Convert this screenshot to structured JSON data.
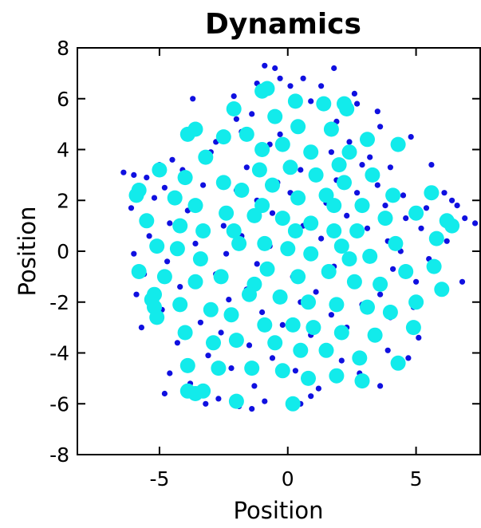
{
  "chart_data": {
    "type": "scatter",
    "title": "Dynamics",
    "xlabel": "Position",
    "ylabel": "Position",
    "xlim": [
      -8.2,
      7.5
    ],
    "ylim": [
      -8,
      8
    ],
    "xticks": [
      -5,
      0,
      5
    ],
    "yticks": [
      -8,
      -6,
      -4,
      -2,
      0,
      2,
      4,
      6,
      8
    ],
    "grid": false,
    "legend": false,
    "series": [
      {
        "color": "#1010e0",
        "marker": "small-dot",
        "points": [
          [
            -0.9,
            7.3
          ],
          [
            -0.5,
            7.2
          ],
          [
            1.8,
            7.2
          ],
          [
            -0.3,
            6.8
          ],
          [
            0.6,
            6.8
          ],
          [
            0.1,
            6.5
          ],
          [
            -1.2,
            6.6
          ],
          [
            1.3,
            6.5
          ],
          [
            2.6,
            6.2
          ],
          [
            -2.1,
            6.1
          ],
          [
            -3.7,
            6.0
          ],
          [
            0.9,
            5.9
          ],
          [
            2.7,
            5.8
          ],
          [
            3.5,
            5.5
          ],
          [
            -1.4,
            5.4
          ],
          [
            -2.0,
            5.2
          ],
          [
            1.9,
            5.1
          ],
          [
            3.6,
            4.9
          ],
          [
            -1.8,
            4.7
          ],
          [
            -0.3,
            4.6
          ],
          [
            2.4,
            4.3
          ],
          [
            4.8,
            4.5
          ],
          [
            -2.8,
            4.3
          ],
          [
            -0.7,
            4.2
          ],
          [
            1.7,
            3.9
          ],
          [
            -4.5,
            3.6
          ],
          [
            -3.0,
            3.9
          ],
          [
            3.2,
            3.7
          ],
          [
            -6.4,
            3.1
          ],
          [
            -6.0,
            3.0
          ],
          [
            -5.0,
            3.4
          ],
          [
            -4.1,
            3.2
          ],
          [
            -1.6,
            3.3
          ],
          [
            0.5,
            3.2
          ],
          [
            2.9,
            3.4
          ],
          [
            4.0,
            3.3
          ],
          [
            5.6,
            3.4
          ],
          [
            -5.5,
            2.9
          ],
          [
            -3.3,
            2.6
          ],
          [
            -0.4,
            2.7
          ],
          [
            1.9,
            2.8
          ],
          [
            3.5,
            2.6
          ],
          [
            -4.8,
            2.5
          ],
          [
            -2.0,
            2.4
          ],
          [
            0.1,
            2.3
          ],
          [
            2.7,
            2.3
          ],
          [
            4.5,
            2.2
          ],
          [
            6.1,
            2.3
          ],
          [
            6.4,
            2.0
          ],
          [
            -5.2,
            2.1
          ],
          [
            -1.2,
            2.0
          ],
          [
            1.5,
            1.9
          ],
          [
            3.8,
            1.8
          ],
          [
            5.4,
            1.7
          ],
          [
            6.6,
            1.8
          ],
          [
            -6.1,
            1.7
          ],
          [
            -3.9,
            1.6
          ],
          [
            -0.6,
            1.5
          ],
          [
            2.3,
            1.4
          ],
          [
            4.6,
            1.3
          ],
          [
            6.9,
            1.3
          ],
          [
            7.3,
            1.1
          ],
          [
            -4.6,
            1.1
          ],
          [
            -2.5,
            1.0
          ],
          [
            0.6,
            1.0
          ],
          [
            3.1,
            0.9
          ],
          [
            5.2,
            0.9
          ],
          [
            -5.4,
            0.6
          ],
          [
            -1.8,
            0.6
          ],
          [
            1.3,
            0.5
          ],
          [
            3.9,
            0.4
          ],
          [
            6.2,
            0.4
          ],
          [
            -3.6,
            0.3
          ],
          [
            -0.7,
            0.2
          ],
          [
            2.0,
            0.1
          ],
          [
            4.4,
            0.0
          ],
          [
            -6.0,
            -0.1
          ],
          [
            -2.4,
            -0.1
          ],
          [
            0.8,
            -0.2
          ],
          [
            3.3,
            -0.3
          ],
          [
            5.5,
            -0.3
          ],
          [
            -4.7,
            -0.4
          ],
          [
            -1.2,
            -0.5
          ],
          [
            1.8,
            -0.6
          ],
          [
            4.1,
            -0.7
          ],
          [
            -5.6,
            -0.9
          ],
          [
            -2.8,
            -0.9
          ],
          [
            0.2,
            -1.0
          ],
          [
            2.7,
            -1.1
          ],
          [
            5.0,
            -1.2
          ],
          [
            6.8,
            -1.2
          ],
          [
            -4.2,
            -1.4
          ],
          [
            -1.6,
            -1.5
          ],
          [
            1.1,
            -1.6
          ],
          [
            3.6,
            -1.7
          ],
          [
            -5.9,
            -1.7
          ],
          [
            -2.3,
            -1.9
          ],
          [
            0.5,
            -2.0
          ],
          [
            2.9,
            -2.1
          ],
          [
            4.9,
            -2.2
          ],
          [
            -4.9,
            -2.3
          ],
          [
            -1.0,
            -2.4
          ],
          [
            1.7,
            -2.5
          ],
          [
            4.0,
            -2.6
          ],
          [
            -3.4,
            -2.8
          ],
          [
            -0.2,
            -2.9
          ],
          [
            2.3,
            -3.0
          ],
          [
            -5.7,
            -3.0
          ],
          [
            -2.6,
            -3.2
          ],
          [
            0.9,
            -3.3
          ],
          [
            3.4,
            -3.3
          ],
          [
            5.1,
            -3.4
          ],
          [
            -4.3,
            -3.6
          ],
          [
            -1.5,
            -3.7
          ],
          [
            1.5,
            -3.8
          ],
          [
            3.9,
            -3.9
          ],
          [
            -3.1,
            -4.1
          ],
          [
            -0.6,
            -4.2
          ],
          [
            2.1,
            -4.3
          ],
          [
            4.7,
            -4.2
          ],
          [
            -4.6,
            -4.8
          ],
          [
            -2.2,
            -4.6
          ],
          [
            0.3,
            -4.7
          ],
          [
            2.8,
            -4.8
          ],
          [
            -3.8,
            -5.2
          ],
          [
            -1.3,
            -5.3
          ],
          [
            1.2,
            -5.4
          ],
          [
            3.6,
            -5.3
          ],
          [
            -4.8,
            -5.6
          ],
          [
            -2.7,
            -5.8
          ],
          [
            -0.9,
            -5.9
          ],
          [
            0.9,
            -5.7
          ],
          [
            -3.2,
            -6.0
          ],
          [
            -1.9,
            -6.1
          ],
          [
            -1.4,
            -6.2
          ],
          [
            0.5,
            -6.0
          ]
        ]
      },
      {
        "color": "#12ebeb",
        "marker": "large-dot",
        "points": [
          [
            -1.0,
            6.3
          ],
          [
            -0.8,
            6.4
          ],
          [
            2.2,
            5.8
          ],
          [
            2.3,
            5.6
          ],
          [
            0.3,
            5.9
          ],
          [
            1.4,
            5.8
          ],
          [
            -2.1,
            5.6
          ],
          [
            -0.5,
            5.3
          ],
          [
            -3.6,
            4.8
          ],
          [
            -3.9,
            4.6
          ],
          [
            -1.6,
            4.6
          ],
          [
            0.4,
            4.9
          ],
          [
            1.7,
            4.8
          ],
          [
            -2.5,
            4.5
          ],
          [
            3.1,
            4.4
          ],
          [
            4.3,
            4.2
          ],
          [
            -0.2,
            4.2
          ],
          [
            -1.0,
            4.0
          ],
          [
            0.9,
            3.9
          ],
          [
            2.4,
            3.9
          ],
          [
            -5.0,
            3.2
          ],
          [
            -3.2,
            3.7
          ],
          [
            -1.1,
            3.2
          ],
          [
            0.1,
            3.3
          ],
          [
            1.1,
            3.0
          ],
          [
            2.0,
            3.4
          ],
          [
            3.3,
            3.0
          ],
          [
            -4.0,
            2.9
          ],
          [
            -2.5,
            2.7
          ],
          [
            -0.6,
            2.6
          ],
          [
            2.2,
            2.7
          ],
          [
            -5.9,
            2.2
          ],
          [
            -5.8,
            2.4
          ],
          [
            -4.4,
            2.1
          ],
          [
            -1.8,
            2.4
          ],
          [
            0.4,
            2.1
          ],
          [
            1.5,
            2.2
          ],
          [
            4.1,
            2.2
          ],
          [
            5.6,
            2.3
          ],
          [
            -3.6,
            1.8
          ],
          [
            -1.0,
            1.8
          ],
          [
            1.8,
            1.8
          ],
          [
            2.9,
            1.8
          ],
          [
            -2.4,
            1.5
          ],
          [
            -1.3,
            1.4
          ],
          [
            -0.2,
            1.3
          ],
          [
            0.9,
            1.1
          ],
          [
            3.8,
            1.3
          ],
          [
            5.0,
            1.5
          ],
          [
            -5.5,
            1.2
          ],
          [
            -4.2,
            1.0
          ],
          [
            -3.3,
            0.8
          ],
          [
            -2.1,
            0.8
          ],
          [
            0.3,
            0.8
          ],
          [
            1.8,
            0.8
          ],
          [
            2.7,
            0.8
          ],
          [
            6.2,
            1.2
          ],
          [
            6.4,
            1.0
          ],
          [
            5.8,
            0.5
          ],
          [
            -5.1,
            0.2
          ],
          [
            -4.3,
            0.1
          ],
          [
            -1.9,
            0.3
          ],
          [
            -0.9,
            0.3
          ],
          [
            2.1,
            0.2
          ],
          [
            4.2,
            0.3
          ],
          [
            -3.4,
            -0.3
          ],
          [
            0.0,
            0.1
          ],
          [
            0.9,
            -0.1
          ],
          [
            3.2,
            -0.2
          ],
          [
            -5.8,
            -0.8
          ],
          [
            -4.8,
            -1.0
          ],
          [
            -2.6,
            -1.0
          ],
          [
            -0.8,
            -0.7
          ],
          [
            1.6,
            -0.8
          ],
          [
            2.4,
            -0.3
          ],
          [
            4.6,
            -0.8
          ],
          [
            5.7,
            -0.6
          ],
          [
            -3.6,
            -1.2
          ],
          [
            -1.3,
            -1.3
          ],
          [
            0.4,
            -1.0
          ],
          [
            2.6,
            -1.2
          ],
          [
            3.6,
            -1.3
          ],
          [
            6.0,
            -1.5
          ],
          [
            -5.2,
            -1.7
          ],
          [
            -5.3,
            -1.9
          ],
          [
            -5.2,
            -2.2
          ],
          [
            -5.1,
            -2.6
          ],
          [
            -4.2,
            -2.1
          ],
          [
            -3.0,
            -2.3
          ],
          [
            -1.5,
            -1.7
          ],
          [
            -0.3,
            -1.8
          ],
          [
            0.8,
            -2.0
          ],
          [
            1.9,
            -2.1
          ],
          [
            3.1,
            -2.2
          ],
          [
            4.0,
            -2.4
          ],
          [
            5.0,
            -2.0
          ],
          [
            -2.2,
            -2.5
          ],
          [
            -0.9,
            -2.9
          ],
          [
            0.2,
            -2.9
          ],
          [
            1.0,
            -3.0
          ],
          [
            2.1,
            -3.2
          ],
          [
            3.4,
            -3.3
          ],
          [
            4.9,
            -3.0
          ],
          [
            -4.0,
            -3.2
          ],
          [
            -2.9,
            -3.6
          ],
          [
            -2.0,
            -3.5
          ],
          [
            -0.5,
            -3.6
          ],
          [
            0.5,
            -3.9
          ],
          [
            1.5,
            -3.9
          ],
          [
            2.8,
            -4.2
          ],
          [
            4.3,
            -4.4
          ],
          [
            -3.9,
            -4.5
          ],
          [
            -2.7,
            -4.6
          ],
          [
            -1.4,
            -4.6
          ],
          [
            -0.2,
            -4.7
          ],
          [
            0.8,
            -5.0
          ],
          [
            1.9,
            -4.9
          ],
          [
            2.9,
            -5.1
          ],
          [
            -3.9,
            -5.5
          ],
          [
            -3.6,
            -5.6
          ],
          [
            -3.3,
            -5.5
          ],
          [
            -2.0,
            -5.9
          ],
          [
            0.2,
            -6.0
          ]
        ]
      }
    ]
  }
}
